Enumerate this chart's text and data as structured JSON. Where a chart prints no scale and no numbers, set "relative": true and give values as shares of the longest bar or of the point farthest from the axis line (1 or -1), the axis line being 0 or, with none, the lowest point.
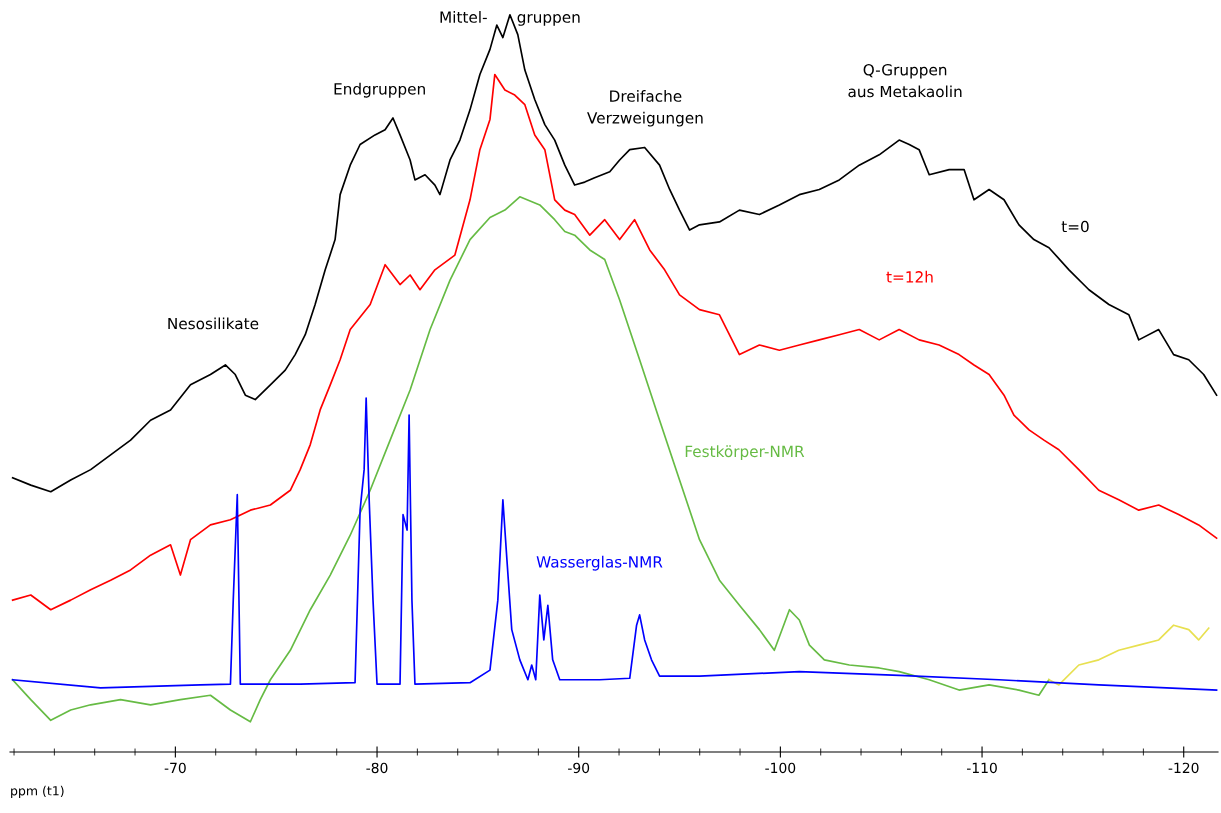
{
  "chart_data": {
    "type": "line",
    "relative": true,
    "xlabel": "ppm (t1)",
    "xlim": [
      -61.8,
      -121.7
    ],
    "xticks": [
      {
        "value": -62,
        "label": null
      },
      {
        "value": -64,
        "label": null
      },
      {
        "value": -66,
        "label": null
      },
      {
        "value": -68,
        "label": null
      },
      -70,
      {
        "value": -72,
        "label": null
      },
      {
        "value": -74,
        "label": null
      },
      {
        "value": -76,
        "label": null
      },
      {
        "value": -78,
        "label": null
      },
      -80,
      {
        "value": -82,
        "label": null
      },
      {
        "value": -84,
        "label": null
      },
      {
        "value": -86,
        "label": null
      },
      {
        "value": -88,
        "label": null
      },
      -90,
      {
        "value": -92,
        "label": null
      },
      {
        "value": -94,
        "label": null
      },
      {
        "value": -96,
        "label": null
      },
      {
        "value": -98,
        "label": null
      },
      -100,
      {
        "value": -102,
        "label": null
      },
      {
        "value": -104,
        "label": null
      },
      {
        "value": -106,
        "label": null
      },
      {
        "value": -108,
        "label": null
      },
      -110,
      {
        "value": -112,
        "label": null
      },
      {
        "value": -114,
        "label": null
      },
      {
        "value": -116,
        "label": null
      },
      {
        "value": -118,
        "label": null
      },
      -120
    ],
    "series": [
      {
        "name": "t=0",
        "color": "#000000",
        "x": [
          -61.93,
          -62.83,
          -63.82,
          -64.81,
          -65.8,
          -66.79,
          -67.78,
          -68.77,
          -69.76,
          -70.75,
          -71.74,
          -72.48,
          -72.97,
          -73.47,
          -73.96,
          -74.71,
          -75.45,
          -75.94,
          -76.44,
          -76.93,
          -77.43,
          -77.92,
          -78.17,
          -78.67,
          -79.16,
          -79.9,
          -80.4,
          -80.79,
          -81.14,
          -81.64,
          -81.88,
          -82.38,
          -82.87,
          -83.12,
          -83.62,
          -84.11,
          -84.61,
          -85.1,
          -85.6,
          -85.94,
          -86.24,
          -86.59,
          -86.98,
          -87.33,
          -87.82,
          -88.32,
          -88.81,
          -89.31,
          -89.8,
          -90.3,
          -90.79,
          -91.54,
          -92.03,
          -92.53,
          -93.27,
          -94.01,
          -94.51,
          -95.0,
          -95.5,
          -95.99,
          -96.98,
          -97.97,
          -98.96,
          -99.95,
          -100.94,
          -101.93,
          -102.92,
          -103.91,
          -104.9,
          -105.89,
          -106.39,
          -106.88,
          -107.38,
          -108.37,
          -109.11,
          -109.6,
          -110.35,
          -111.09,
          -111.83,
          -112.57,
          -113.32,
          -114.31,
          -115.3,
          -116.29,
          -117.28,
          -117.77,
          -118.76,
          -119.5,
          -120.25,
          -120.99,
          -121.63
        ],
        "values": [
          0.372,
          0.362,
          0.353,
          0.369,
          0.383,
          0.403,
          0.423,
          0.45,
          0.464,
          0.498,
          0.512,
          0.525,
          0.512,
          0.484,
          0.478,
          0.498,
          0.518,
          0.539,
          0.566,
          0.607,
          0.654,
          0.695,
          0.756,
          0.796,
          0.824,
          0.837,
          0.844,
          0.86,
          0.837,
          0.803,
          0.776,
          0.783,
          0.769,
          0.756,
          0.803,
          0.83,
          0.871,
          0.919,
          0.953,
          0.986,
          0.969,
          1.0,
          0.973,
          0.925,
          0.885,
          0.851,
          0.83,
          0.796,
          0.769,
          0.773,
          0.779,
          0.787,
          0.803,
          0.817,
          0.82,
          0.796,
          0.763,
          0.735,
          0.708,
          0.715,
          0.719,
          0.735,
          0.729,
          0.742,
          0.756,
          0.763,
          0.776,
          0.796,
          0.81,
          0.83,
          0.824,
          0.817,
          0.783,
          0.79,
          0.79,
          0.749,
          0.763,
          0.749,
          0.715,
          0.695,
          0.684,
          0.654,
          0.627,
          0.607,
          0.593,
          0.559,
          0.573,
          0.539,
          0.532,
          0.512,
          0.484
        ]
      },
      {
        "name": "t=12h",
        "color": "#ff0000",
        "x": [
          -61.93,
          -62.83,
          -63.82,
          -64.81,
          -65.8,
          -66.79,
          -67.78,
          -68.77,
          -69.76,
          -70.25,
          -70.75,
          -71.74,
          -72.73,
          -73.72,
          -74.71,
          -75.7,
          -76.19,
          -76.69,
          -77.18,
          -77.68,
          -78.17,
          -78.67,
          -79.66,
          -80.4,
          -81.14,
          -81.64,
          -82.13,
          -82.87,
          -83.86,
          -84.61,
          -85.1,
          -85.6,
          -85.84,
          -86.34,
          -86.83,
          -87.33,
          -87.82,
          -88.32,
          -88.81,
          -89.31,
          -89.8,
          -90.55,
          -91.29,
          -92.03,
          -92.77,
          -93.52,
          -94.26,
          -95.0,
          -95.99,
          -96.98,
          -97.97,
          -98.96,
          -99.95,
          -100.94,
          -101.93,
          -102.92,
          -103.91,
          -104.9,
          -105.89,
          -106.88,
          -107.87,
          -108.86,
          -109.6,
          -110.35,
          -111.09,
          -111.58,
          -112.33,
          -113.07,
          -113.81,
          -114.8,
          -115.79,
          -116.78,
          -117.77,
          -118.76,
          -119.75,
          -120.74,
          -121.63
        ],
        "values": [
          0.206,
          0.213,
          0.193,
          0.206,
          0.22,
          0.233,
          0.247,
          0.267,
          0.281,
          0.24,
          0.288,
          0.308,
          0.315,
          0.328,
          0.335,
          0.355,
          0.383,
          0.417,
          0.464,
          0.498,
          0.532,
          0.573,
          0.607,
          0.661,
          0.634,
          0.647,
          0.627,
          0.654,
          0.674,
          0.749,
          0.817,
          0.858,
          0.919,
          0.898,
          0.891,
          0.878,
          0.837,
          0.817,
          0.749,
          0.735,
          0.729,
          0.701,
          0.722,
          0.695,
          0.722,
          0.681,
          0.654,
          0.62,
          0.6,
          0.593,
          0.539,
          0.552,
          0.545,
          0.552,
          0.559,
          0.566,
          0.573,
          0.559,
          0.573,
          0.559,
          0.552,
          0.539,
          0.525,
          0.512,
          0.484,
          0.457,
          0.437,
          0.423,
          0.41,
          0.383,
          0.355,
          0.342,
          0.328,
          0.335,
          0.322,
          0.308,
          0.29
        ]
      },
      {
        "name": "Festkörper-NMR",
        "color": "#66bb44",
        "x": [
          -61.93,
          -62.83,
          -63.82,
          -64.81,
          -65.8,
          -67.28,
          -68.77,
          -70.25,
          -71.74,
          -72.73,
          -73.72,
          -74.21,
          -74.71,
          -75.7,
          -76.69,
          -77.68,
          -78.67,
          -79.66,
          -80.65,
          -81.64,
          -82.63,
          -83.62,
          -84.61,
          -85.6,
          -86.34,
          -87.08,
          -88.07,
          -88.81,
          -89.31,
          -89.8,
          -90.55,
          -91.29,
          -92.03,
          -93.02,
          -94.01,
          -95.0,
          -95.99,
          -96.98,
          -97.97,
          -98.96,
          -99.7,
          -100.45,
          -100.94,
          -101.44,
          -102.18,
          -103.42,
          -104.9,
          -105.89,
          -107.38,
          -108.86,
          -110.35,
          -111.83,
          -112.82,
          -113.32
        ],
        "values": [
          0.098,
          0.071,
          0.043,
          0.057,
          0.064,
          0.071,
          0.064,
          0.071,
          0.077,
          0.057,
          0.041,
          0.071,
          0.098,
          0.138,
          0.193,
          0.24,
          0.294,
          0.355,
          0.423,
          0.491,
          0.573,
          0.64,
          0.695,
          0.725,
          0.735,
          0.753,
          0.742,
          0.722,
          0.706,
          0.701,
          0.681,
          0.668,
          0.613,
          0.532,
          0.45,
          0.369,
          0.288,
          0.233,
          0.199,
          0.166,
          0.138,
          0.193,
          0.179,
          0.145,
          0.125,
          0.118,
          0.114,
          0.109,
          0.098,
          0.084,
          0.091,
          0.084,
          0.077,
          0.098
        ]
      },
      {
        "color": "#e8e050",
        "x": [
          -113.32,
          -113.81,
          -114.8,
          -115.79,
          -116.78,
          -117.77,
          -118.76,
          -119.5,
          -120.25,
          -120.74,
          -121.24
        ],
        "values": [
          0.098,
          0.091,
          0.118,
          0.125,
          0.138,
          0.145,
          0.152,
          0.172,
          0.166,
          0.152,
          0.168
        ]
      },
      {
        "name": "Wasserglas-NMR",
        "color": "#0000ff",
        "x": [
          -61.93,
          -66.29,
          -71.24,
          -72.73,
          -72.87,
          -73.07,
          -73.22,
          -76.19,
          -78.91,
          -79.16,
          -79.36,
          -79.46,
          -79.61,
          -79.8,
          -80.0,
          -81.14,
          -81.29,
          -81.49,
          -81.59,
          -81.73,
          -81.88,
          -84.61,
          -85.6,
          -85.99,
          -86.24,
          -86.44,
          -86.68,
          -87.08,
          -87.48,
          -87.67,
          -87.87,
          -88.07,
          -88.27,
          -88.47,
          -88.71,
          -89.06,
          -91.04,
          -92.53,
          -92.87,
          -93.02,
          -93.27,
          -93.61,
          -94.01,
          -95.99,
          -100.94,
          -105.89,
          -110.84,
          -115.79,
          -121.63
        ],
        "values": [
          0.098,
          0.087,
          0.091,
          0.092,
          0.206,
          0.349,
          0.092,
          0.092,
          0.094,
          0.328,
          0.383,
          0.48,
          0.342,
          0.206,
          0.092,
          0.092,
          0.322,
          0.301,
          0.457,
          0.206,
          0.092,
          0.094,
          0.111,
          0.206,
          0.342,
          0.261,
          0.166,
          0.125,
          0.098,
          0.118,
          0.098,
          0.213,
          0.152,
          0.199,
          0.125,
          0.098,
          0.098,
          0.1,
          0.172,
          0.186,
          0.152,
          0.125,
          0.103,
          0.103,
          0.109,
          0.104,
          0.098,
          0.091,
          0.084
        ]
      }
    ],
    "annotations": [
      "Nesosilikate",
      "Endgruppen",
      {
        "text": "Mittel-      gruppen",
        "x": -86.59,
        "y": 0.995
      },
      "Dreifache\nVerzweigungen",
      "Q-Gruppen\naus Metakaolin"
    ]
  }
}
